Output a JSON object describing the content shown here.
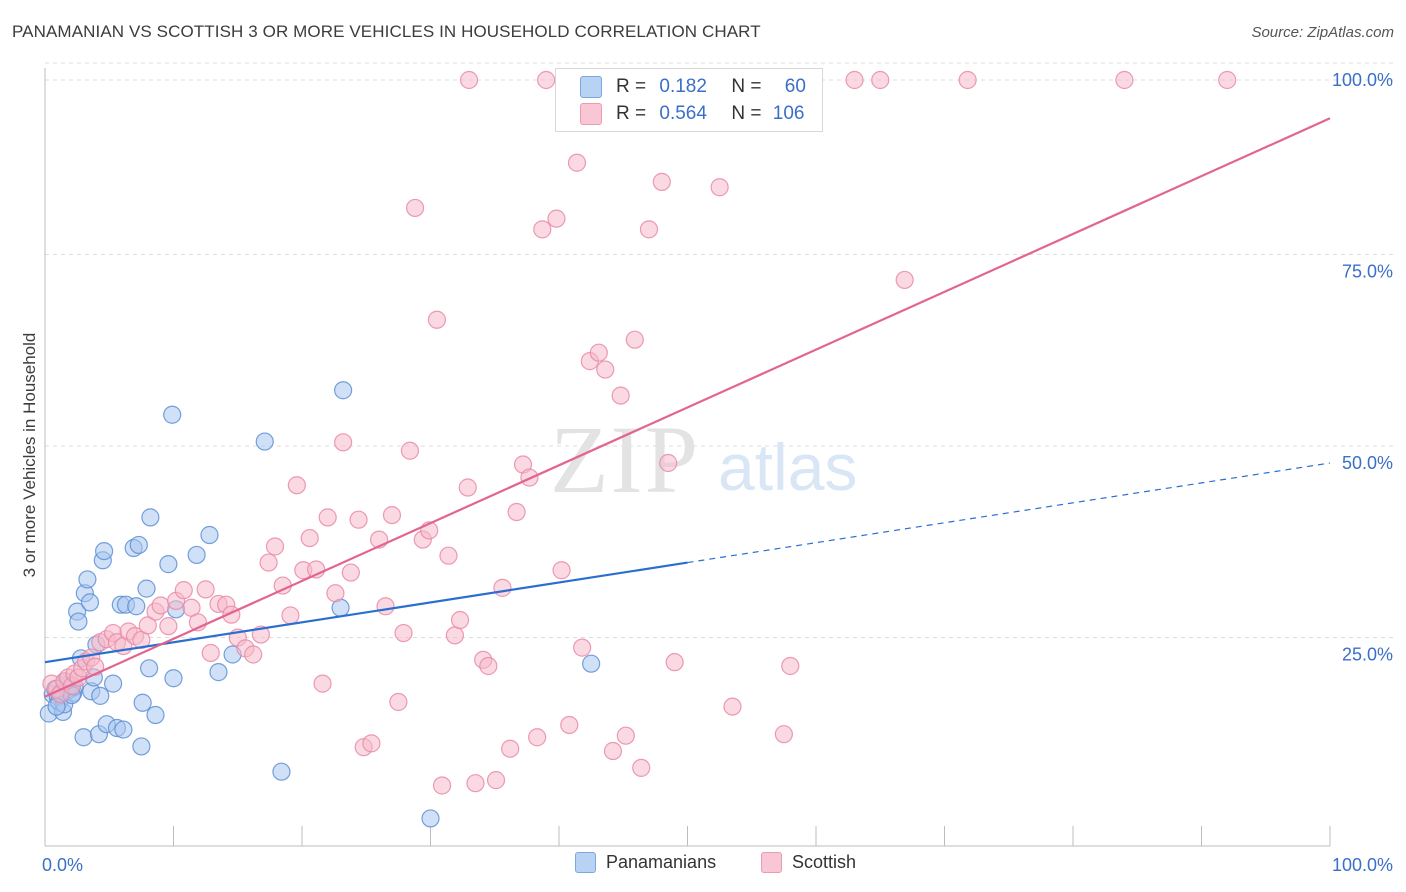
{
  "title": "PANAMANIAN VS SCOTTISH 3 OR MORE VEHICLES IN HOUSEHOLD CORRELATION CHART",
  "source": "Source: ZipAtlas.com",
  "watermark": {
    "zip": "ZIP",
    "atlas": "atlas"
  },
  "legend_top": [
    {
      "r_label": "R = ",
      "r_value": "0.182",
      "n_label": "N = ",
      "n_value": "60"
    },
    {
      "r_label": "R = ",
      "r_value": "0.564",
      "n_label": "N = ",
      "n_value": "106"
    }
  ],
  "legend_bottom": [
    "Panamanians",
    "Scottish"
  ],
  "colors": {
    "blue_fill": "#a9c7ef",
    "blue_stroke": "#5d8fd6",
    "blue_line": "#2a6fd0",
    "pink_fill": "#f6b9cb",
    "pink_stroke": "#e98aa8",
    "pink_line": "#e2648f",
    "tick_label": "#3a6fc9",
    "grid": "#dcdcdc"
  },
  "chart_data": {
    "type": "scatter",
    "title": "PANAMANIAN VS SCOTTISH 3 OR MORE VEHICLES IN HOUSEHOLD CORRELATION CHART",
    "xlabel": "",
    "ylabel": "3 or more Vehicles in Household",
    "xlim": [
      0,
      100
    ],
    "ylim": [
      0,
      105
    ],
    "x_tick_labels": [
      "0.0%",
      "100.0%"
    ],
    "y_tick_values": [
      25,
      50,
      75,
      100
    ],
    "y_tick_labels": [
      "25.0%",
      "50.0%",
      "75.0%",
      "100.0%"
    ],
    "grid": "horizontal dashed",
    "series": [
      {
        "name": "Panamanians",
        "color": "#a9c7ef",
        "trend": {
          "x": [
            0,
            50
          ],
          "y": [
            24.0,
            37.0
          ],
          "dashed_extension_to": [
            100,
            50.0
          ]
        },
        "points": [
          [
            0.3,
            17.3
          ],
          [
            0.6,
            19.8
          ],
          [
            0.8,
            20.5
          ],
          [
            1.0,
            19.5
          ],
          [
            1.1,
            18.8
          ],
          [
            1.3,
            20.2
          ],
          [
            1.4,
            17.5
          ],
          [
            1.5,
            18.5
          ],
          [
            1.7,
            21.0
          ],
          [
            1.8,
            20.3
          ],
          [
            2.0,
            20.5
          ],
          [
            2.2,
            20.0
          ],
          [
            2.3,
            20.8
          ],
          [
            2.5,
            30.6
          ],
          [
            2.6,
            29.3
          ],
          [
            2.8,
            24.5
          ],
          [
            3.0,
            14.2
          ],
          [
            3.1,
            33.0
          ],
          [
            3.3,
            34.8
          ],
          [
            3.5,
            31.8
          ],
          [
            3.6,
            20.2
          ],
          [
            3.8,
            22.0
          ],
          [
            4.0,
            26.3
          ],
          [
            4.2,
            14.6
          ],
          [
            4.3,
            19.6
          ],
          [
            4.5,
            37.3
          ],
          [
            4.6,
            38.5
          ],
          [
            4.8,
            15.9
          ],
          [
            5.3,
            21.2
          ],
          [
            5.6,
            15.4
          ],
          [
            5.9,
            31.5
          ],
          [
            6.1,
            15.2
          ],
          [
            6.3,
            31.5
          ],
          [
            6.9,
            38.9
          ],
          [
            7.1,
            31.3
          ],
          [
            7.3,
            39.3
          ],
          [
            7.5,
            13.0
          ],
          [
            7.6,
            18.7
          ],
          [
            7.9,
            33.6
          ],
          [
            8.1,
            23.2
          ],
          [
            8.2,
            42.9
          ],
          [
            8.6,
            17.1
          ],
          [
            9.6,
            36.8
          ],
          [
            9.9,
            56.3
          ],
          [
            10.0,
            21.9
          ],
          [
            10.2,
            30.9
          ],
          [
            11.8,
            38.0
          ],
          [
            12.8,
            40.6
          ],
          [
            13.5,
            22.7
          ],
          [
            14.6,
            25.0
          ],
          [
            17.1,
            52.8
          ],
          [
            18.4,
            9.7
          ],
          [
            23.0,
            31.1
          ],
          [
            23.2,
            59.5
          ],
          [
            30.0,
            3.6
          ],
          [
            42.5,
            23.8
          ],
          [
            1.2,
            20.0
          ],
          [
            2.1,
            19.7
          ],
          [
            0.9,
            18.2
          ],
          [
            1.6,
            21.5
          ]
        ]
      },
      {
        "name": "Scottish",
        "color": "#f6b9cb",
        "trend": {
          "x": [
            0,
            100
          ],
          "y": [
            19.5,
            95.0
          ]
        },
        "points": [
          [
            0.5,
            21.2
          ],
          [
            0.9,
            20.5
          ],
          [
            1.2,
            19.8
          ],
          [
            1.5,
            21.5
          ],
          [
            1.8,
            22.0
          ],
          [
            2.1,
            20.9
          ],
          [
            2.3,
            22.5
          ],
          [
            2.6,
            22.0
          ],
          [
            2.9,
            23.2
          ],
          [
            3.2,
            24.1
          ],
          [
            3.6,
            24.6
          ],
          [
            3.9,
            23.4
          ],
          [
            4.3,
            26.6
          ],
          [
            4.8,
            27.0
          ],
          [
            5.3,
            27.8
          ],
          [
            5.6,
            26.6
          ],
          [
            6.1,
            26.1
          ],
          [
            6.5,
            28.0
          ],
          [
            7.0,
            27.4
          ],
          [
            7.5,
            26.9
          ],
          [
            8.0,
            28.8
          ],
          [
            8.6,
            30.6
          ],
          [
            9.0,
            31.4
          ],
          [
            9.6,
            28.7
          ],
          [
            10.2,
            32.0
          ],
          [
            10.8,
            33.4
          ],
          [
            11.4,
            31.1
          ],
          [
            11.9,
            29.2
          ],
          [
            12.5,
            33.5
          ],
          [
            12.9,
            25.2
          ],
          [
            13.5,
            31.6
          ],
          [
            14.1,
            31.5
          ],
          [
            14.5,
            30.2
          ],
          [
            15.0,
            27.2
          ],
          [
            15.6,
            25.8
          ],
          [
            16.2,
            25.0
          ],
          [
            16.8,
            27.6
          ],
          [
            17.4,
            37.0
          ],
          [
            17.9,
            39.1
          ],
          [
            18.5,
            34.0
          ],
          [
            19.1,
            30.1
          ],
          [
            19.6,
            47.1
          ],
          [
            20.1,
            36.0
          ],
          [
            20.6,
            40.2
          ],
          [
            21.1,
            36.1
          ],
          [
            21.6,
            21.2
          ],
          [
            22.0,
            42.9
          ],
          [
            22.6,
            33.0
          ],
          [
            23.2,
            52.7
          ],
          [
            23.8,
            35.7
          ],
          [
            24.4,
            42.6
          ],
          [
            24.8,
            12.9
          ],
          [
            25.4,
            13.4
          ],
          [
            26.0,
            40.0
          ],
          [
            26.5,
            31.3
          ],
          [
            27.0,
            43.2
          ],
          [
            27.5,
            18.8
          ],
          [
            27.9,
            27.8
          ],
          [
            28.4,
            51.6
          ],
          [
            28.8,
            83.3
          ],
          [
            29.4,
            40.0
          ],
          [
            29.9,
            41.2
          ],
          [
            30.5,
            68.7
          ],
          [
            30.9,
            7.9
          ],
          [
            31.4,
            37.9
          ],
          [
            31.9,
            27.5
          ],
          [
            32.3,
            29.5
          ],
          [
            32.9,
            46.8
          ],
          [
            33.5,
            8.2
          ],
          [
            34.1,
            24.3
          ],
          [
            34.5,
            23.5
          ],
          [
            35.1,
            8.6
          ],
          [
            35.6,
            33.7
          ],
          [
            36.2,
            12.7
          ],
          [
            36.7,
            43.6
          ],
          [
            37.2,
            49.8
          ],
          [
            37.7,
            48.1
          ],
          [
            38.3,
            14.2
          ],
          [
            38.7,
            80.5
          ],
          [
            39.8,
            81.9
          ],
          [
            40.2,
            36.0
          ],
          [
            40.8,
            15.8
          ],
          [
            41.4,
            89.2
          ],
          [
            41.8,
            25.9
          ],
          [
            42.4,
            63.3
          ],
          [
            43.1,
            64.4
          ],
          [
            43.6,
            62.2
          ],
          [
            44.2,
            12.4
          ],
          [
            44.8,
            58.8
          ],
          [
            45.2,
            14.4
          ],
          [
            45.9,
            66.1
          ],
          [
            46.4,
            10.2
          ],
          [
            47.0,
            80.5
          ],
          [
            48.0,
            86.7
          ],
          [
            48.5,
            50.0
          ],
          [
            49.0,
            24.0
          ],
          [
            49.6,
            100.0
          ],
          [
            52.5,
            86.0
          ],
          [
            53.5,
            18.2
          ],
          [
            57.5,
            14.6
          ],
          [
            58.0,
            23.5
          ],
          [
            65.0,
            100.0
          ],
          [
            66.9,
            73.9
          ],
          [
            71.8,
            100.0
          ],
          [
            84.0,
            100.0
          ],
          [
            92.0,
            100.0
          ]
        ]
      }
    ],
    "extra_top_points": {
      "Scottish": [
        [
          33.0,
          100.0
        ],
        [
          39.0,
          100.0
        ],
        [
          55.0,
          100.0
        ],
        [
          63.0,
          100.0
        ]
      ]
    }
  }
}
